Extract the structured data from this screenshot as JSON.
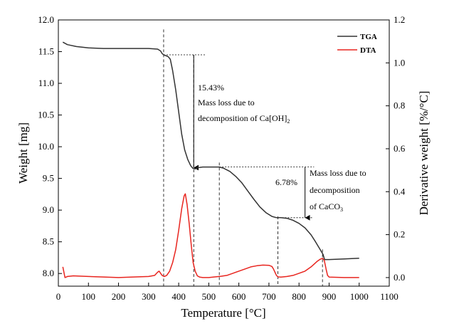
{
  "chart_data": {
    "type": "line",
    "title": "",
    "xlabel": "Temperature [°C]",
    "ylabel_left": "Weight [mg]",
    "ylabel_right": "Derivative weight [%/°C]",
    "xlim": [
      0,
      1100
    ],
    "ylim_left": [
      7.8,
      12.0
    ],
    "ylim_right": [
      -0.04,
      1.2
    ],
    "x_ticks": [
      "0",
      "100",
      "200",
      "300",
      "400",
      "500",
      "600",
      "700",
      "800",
      "900",
      "1000",
      "1100"
    ],
    "y_left_ticks": [
      "8.0",
      "8.5",
      "9.0",
      "9.5",
      "10.0",
      "10.5",
      "11.0",
      "11.5",
      "12.0"
    ],
    "y_right_ticks": [
      "0.0",
      "0.2",
      "0.4",
      "0.6",
      "0.8",
      "1.0",
      "1.2"
    ],
    "legend": [
      "TGA",
      "DTA"
    ],
    "colors": {
      "TGA": "#333333",
      "DTA": "#e8251f"
    },
    "series": [
      {
        "name": "TGA",
        "axis": "left",
        "x": [
          15,
          30,
          60,
          100,
          150,
          200,
          250,
          300,
          330,
          340,
          345,
          350,
          365,
          372,
          380,
          390,
          400,
          410,
          420,
          430,
          440,
          447,
          455,
          465,
          480,
          500,
          520,
          535,
          550,
          570,
          590,
          610,
          630,
          650,
          670,
          690,
          710,
          725,
          740,
          760,
          780,
          800,
          820,
          840,
          855,
          870,
          880,
          885,
          900,
          950,
          1000
        ],
        "y": [
          11.65,
          11.61,
          11.58,
          11.56,
          11.55,
          11.55,
          11.55,
          11.55,
          11.54,
          11.51,
          11.47,
          11.45,
          11.42,
          11.38,
          11.2,
          10.9,
          10.55,
          10.2,
          9.95,
          9.8,
          9.7,
          9.66,
          9.65,
          9.67,
          9.68,
          9.68,
          9.68,
          9.68,
          9.66,
          9.61,
          9.53,
          9.43,
          9.3,
          9.17,
          9.05,
          8.96,
          8.9,
          8.88,
          8.88,
          8.87,
          8.84,
          8.79,
          8.72,
          8.61,
          8.5,
          8.38,
          8.3,
          8.22,
          8.22,
          8.23,
          8.24
        ]
      },
      {
        "name": "DTA",
        "axis": "right",
        "x": [
          15,
          22,
          30,
          50,
          100,
          200,
          300,
          320,
          330,
          335,
          340,
          345,
          352,
          360,
          370,
          380,
          390,
          400,
          410,
          418,
          422,
          428,
          435,
          442,
          448,
          455,
          462,
          470,
          480,
          500,
          520,
          540,
          560,
          580,
          600,
          620,
          640,
          660,
          680,
          700,
          710,
          715,
          720,
          725,
          730,
          740,
          760,
          780,
          800,
          820,
          840,
          860,
          870,
          878,
          884,
          890,
          895,
          900,
          950,
          1000
        ],
        "y": [
          0.05,
          0.0,
          0.005,
          0.008,
          0.005,
          0.0,
          0.005,
          0.01,
          0.025,
          0.03,
          0.02,
          0.01,
          0.005,
          0.01,
          0.03,
          0.07,
          0.13,
          0.22,
          0.32,
          0.38,
          0.39,
          0.34,
          0.25,
          0.15,
          0.07,
          0.03,
          0.008,
          0.002,
          0.0,
          0.0,
          0.003,
          0.006,
          0.01,
          0.02,
          0.03,
          0.04,
          0.05,
          0.055,
          0.058,
          0.057,
          0.052,
          0.04,
          0.025,
          0.01,
          0.003,
          0.002,
          0.005,
          0.01,
          0.02,
          0.03,
          0.05,
          0.075,
          0.085,
          0.09,
          0.08,
          0.04,
          0.01,
          0.002,
          0.0,
          0.0
        ]
      }
    ],
    "vlines": [
      {
        "x": 350,
        "y_top": 11.85
      },
      {
        "x": 450,
        "y_top": 11.45
      },
      {
        "x": 535,
        "y_top": 9.75
      },
      {
        "x": 730,
        "y_top": 8.9
      },
      {
        "x": 878,
        "y_top": 8.38
      }
    ],
    "hlines": [
      {
        "y": 11.45,
        "x1": 350,
        "x2": 490
      },
      {
        "y": 9.68,
        "x1": 535,
        "x2": 850
      },
      {
        "y": 8.88,
        "x1": 725,
        "x2": 845
      }
    ],
    "arrows": [
      {
        "x": 450,
        "y_from": 11.45,
        "y_to": 9.67
      },
      {
        "x": 820,
        "y_from": 9.68,
        "y_to": 8.88
      }
    ],
    "annotations": {
      "a1_pct": "15.43%",
      "a1_l1": "Mass loss due to",
      "a1_l2": "decomposition of Ca[OH]",
      "a1_sub": "2",
      "a2_pct": "6.78%",
      "a2_l1": "Mass loss due to",
      "a2_l2": "decomposition",
      "a2_l3": "of CaCO",
      "a2_sub": "3"
    }
  }
}
